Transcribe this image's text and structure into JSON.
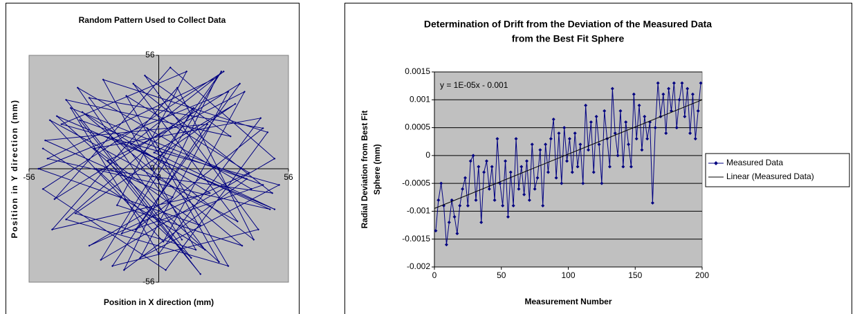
{
  "chart_data": [
    {
      "type": "line",
      "title": "Random Pattern Used to Collect Data",
      "x_label": "Position in X direction (mm)",
      "y_label": "Position in Y direction (mm)",
      "xlim": [
        -56,
        56
      ],
      "ylim": [
        -56,
        56
      ],
      "xticks": [
        -56,
        0,
        56
      ],
      "yticks": [
        -56,
        0,
        56
      ],
      "axes_cross_at_zero": true,
      "background": "#c0c0c0",
      "x": [
        -50,
        20,
        -30,
        45,
        -10,
        35,
        -45,
        5,
        50,
        -25,
        15,
        -40,
        30,
        -5,
        40,
        -35,
        10,
        -20,
        48,
        -48,
        25,
        -15,
        38,
        -38,
        0,
        44,
        -28,
        18,
        -52,
        30,
        -8,
        52,
        -42,
        12,
        -18,
        36,
        -33,
        22,
        -46,
        8,
        41,
        -12,
        28,
        -50,
        3,
        47,
        -24,
        16,
        -36,
        33,
        -2,
        50,
        -44,
        26,
        -14,
        39,
        -30,
        6,
        -49,
        21,
        -20,
        43,
        -6,
        31,
        -40,
        14,
        -27,
        49,
        -11,
        34,
        -47,
        2,
        37,
        -22,
        18,
        -34,
        45,
        -16,
        27,
        -3
      ],
      "series": [
        {
          "color": "#000080",
          "values": [
            10,
            -40,
            35,
            20,
            -30,
            42,
            -15,
            50,
            5,
            -45,
            30,
            -25,
            -48,
            20,
            -10,
            40,
            -35,
            15,
            -20,
            5,
            45,
            -50,
            -5,
            30,
            -42,
            25,
            10,
            -28,
            0,
            38,
            -44,
            -8,
            22,
            48,
            -18,
            -38,
            28,
            -12,
            -30,
            40,
            -35,
            12,
            48,
            -10,
            -50,
            18,
            44,
            -40,
            -22,
            32,
            8,
            -20,
            26,
            -46,
            36,
            -2,
            -38,
            -14,
            14,
            22,
            -48,
            -30,
            46,
            16,
            34,
            -44,
            0,
            -12,
            42,
            -26,
            24,
            -36,
            38,
            4,
            -52,
            24,
            -8,
            -32,
            48,
            0
          ]
        }
      ]
    },
    {
      "type": "line",
      "title": [
        "Determination of Drift from the Deviation of the Measured Data",
        "from the Best Fit Sphere"
      ],
      "x_label": "Measurement Number",
      "y_label": [
        "Radial Deviation from Best Fit",
        "Sphere (mm)"
      ],
      "annotation": "y = 1E-05x - 0.001",
      "xlim": [
        0,
        200
      ],
      "ylim": [
        -0.002,
        0.0015
      ],
      "xticks": [
        0,
        50,
        100,
        150,
        200
      ],
      "yticks": [
        -0.002,
        -0.0015,
        -0.001,
        -0.0005,
        0,
        0.0005,
        0.001,
        0.0015
      ],
      "grid": true,
      "background": "#c0c0c0",
      "legend": "right",
      "x": [
        1,
        3,
        5,
        7,
        9,
        11,
        13,
        15,
        17,
        19,
        21,
        23,
        25,
        27,
        29,
        31,
        33,
        35,
        37,
        39,
        41,
        43,
        45,
        47,
        49,
        51,
        53,
        55,
        57,
        59,
        61,
        63,
        65,
        67,
        69,
        71,
        73,
        75,
        77,
        79,
        81,
        83,
        85,
        87,
        89,
        91,
        93,
        95,
        97,
        99,
        101,
        103,
        105,
        107,
        109,
        111,
        113,
        115,
        117,
        119,
        121,
        123,
        125,
        127,
        129,
        131,
        133,
        135,
        137,
        139,
        141,
        143,
        145,
        147,
        149,
        151,
        153,
        155,
        157,
        159,
        161,
        163,
        165,
        167,
        169,
        171,
        173,
        175,
        177,
        179,
        181,
        183,
        185,
        187,
        189,
        191,
        193,
        195,
        197,
        199
      ],
      "series": [
        {
          "name": "Measured Data",
          "color": "#000080",
          "values": [
            -0.00135,
            -0.0008,
            -0.0005,
            -0.0009,
            -0.0016,
            -0.0012,
            -0.0008,
            -0.0011,
            -0.0014,
            -0.0009,
            -0.0006,
            -0.0004,
            -0.0009,
            -0.0001,
            0,
            -0.0008,
            -0.0002,
            -0.0012,
            -0.0003,
            -0.0001,
            -0.0006,
            -0.0002,
            -0.0008,
            0.0003,
            -0.0005,
            -0.0009,
            -0.0001,
            -0.0011,
            -0.0003,
            -0.0009,
            0.0003,
            -0.0006,
            -0.0002,
            -0.0007,
            -0.0001,
            -0.0008,
            0.0002,
            -0.0006,
            -0.0004,
            0.0001,
            -0.0009,
            0.0002,
            -0.0003,
            0.0003,
            0.00065,
            -0.0004,
            0.0004,
            -0.0005,
            0.0005,
            -0.0001,
            0.0003,
            -0.0003,
            0.0004,
            -0.0002,
            0.0002,
            -0.0005,
            0.0009,
            0.0001,
            0.0006,
            -0.0003,
            0.0007,
            0.0002,
            -0.0005,
            0.0008,
            0.0003,
            -0.0002,
            0.0012,
            0.0004,
            0,
            0.0008,
            -0.0002,
            0.0006,
            0.0002,
            -0.0002,
            0.0011,
            0.0003,
            0.0009,
            0.0001,
            0.0007,
            0.0003,
            0.0006,
            -0.00085,
            0.0005,
            0.0013,
            0.0007,
            0.0011,
            0.0004,
            0.0012,
            0.0008,
            0.0013,
            0.0005,
            0.001,
            0.0013,
            0.0007,
            0.0012,
            0.0004,
            0.0011,
            0.0003,
            0.0008,
            0.0013
          ]
        },
        {
          "name": "Linear (Measured Data)",
          "color": "#000000",
          "markers": false,
          "x": [
            0,
            200
          ],
          "values": [
            -0.00095,
            0.001
          ]
        }
      ]
    }
  ]
}
